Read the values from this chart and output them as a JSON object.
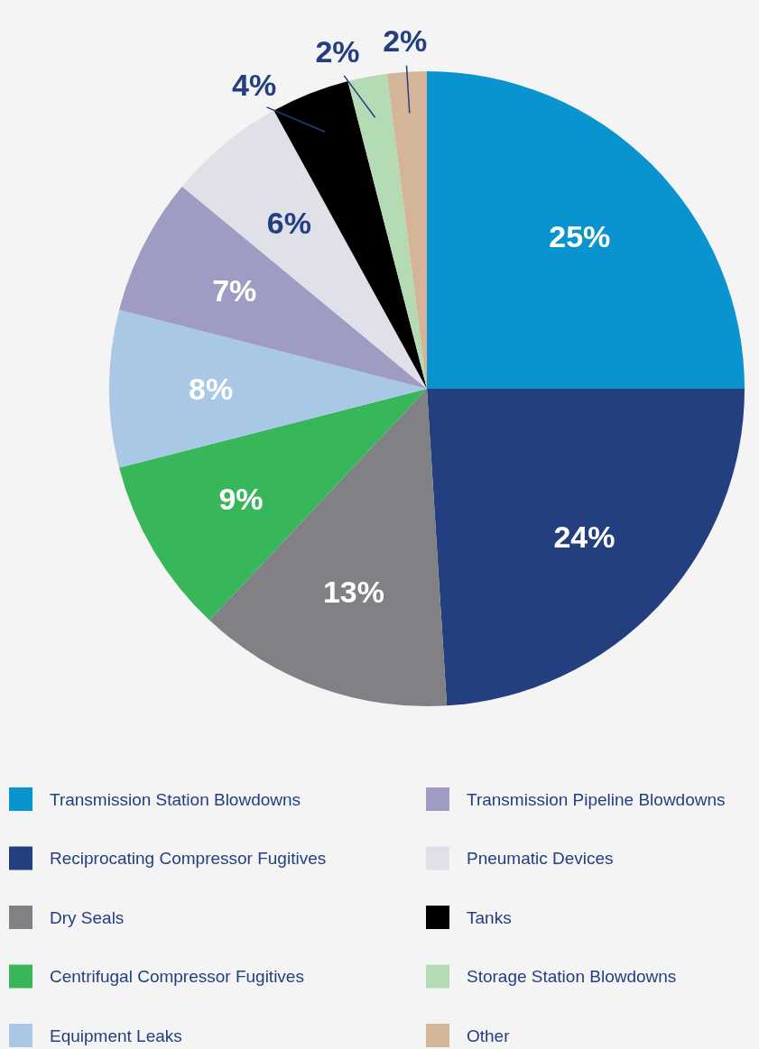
{
  "chart_data": {
    "type": "pie",
    "categories": [
      "Transmission Station Blowdowns",
      "Reciprocating Compressor Fugitives",
      "Dry Seals",
      "Centrifugal Compressor Fugitives",
      "Equipment Leaks",
      "Transmission Pipeline Blowdowns",
      "Pneumatic Devices",
      "Tanks",
      "Storage Station Blowdowns",
      "Other"
    ],
    "values": [
      25,
      24,
      13,
      9,
      8,
      7,
      6,
      4,
      2,
      2
    ],
    "colors": [
      "#0a94cf",
      "#233f80",
      "#818085",
      "#37b65a",
      "#a9c8e6",
      "#9e9cc2",
      "#dfe0e8",
      "#000000",
      "#b5dbb4",
      "#d4b597"
    ],
    "value_labels": [
      "25%",
      "24%",
      "13%",
      "9%",
      "8%",
      "7%",
      "6%",
      "4%",
      "2%",
      "2%"
    ],
    "legend": "bottom"
  }
}
